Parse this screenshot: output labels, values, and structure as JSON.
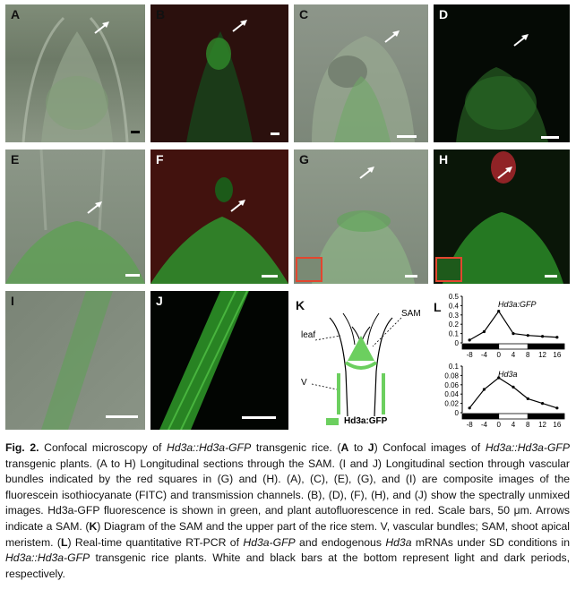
{
  "panels": {
    "A": "A",
    "B": "B",
    "C": "C",
    "D": "D",
    "E": "E",
    "F": "F",
    "G": "G",
    "H": "H",
    "I": "I",
    "J": "J",
    "K": "K",
    "L": "L"
  },
  "diagram_k": {
    "label_leaf": "leaf",
    "label_sam": "SAM",
    "label_v": "V",
    "legend": "Hd3a:GFP"
  },
  "colors": {
    "fluorescence_green": "#3fbf3f",
    "autofluorescence_red": "#c0292b",
    "inset_border": "#e3462f"
  },
  "chart_data": [
    {
      "type": "line",
      "title": "Hd3a:GFP",
      "x": [
        -8,
        -4,
        0,
        4,
        8,
        12,
        16
      ],
      "xticks": [
        "-8",
        "-4",
        "0",
        "4",
        "8",
        "12",
        "16"
      ],
      "y": [
        0.03,
        0.12,
        0.34,
        0.1,
        0.08,
        0.07,
        0.06
      ],
      "yticks": [
        "0",
        "0.1",
        "0.2",
        "0.3",
        "0.4",
        "0.5"
      ],
      "ylim": [
        0,
        0.5
      ],
      "light_dark_bar": [
        {
          "from": -10,
          "to": 0,
          "phase": "dark"
        },
        {
          "from": 0,
          "to": 8,
          "phase": "light"
        },
        {
          "from": 8,
          "to": 18,
          "phase": "dark"
        }
      ]
    },
    {
      "type": "line",
      "title": "Hd3a",
      "x": [
        -8,
        -4,
        0,
        4,
        8,
        12,
        16
      ],
      "xticks": [
        "-8",
        "-4",
        "0",
        "4",
        "8",
        "12",
        "16"
      ],
      "y": [
        0.01,
        0.05,
        0.075,
        0.055,
        0.03,
        0.02,
        0.01
      ],
      "yticks": [
        "0",
        "0.02",
        "0.04",
        "0.06",
        "0.08",
        "0.1"
      ],
      "ylim": [
        0,
        0.1
      ],
      "light_dark_bar": [
        {
          "from": -10,
          "to": 0,
          "phase": "dark"
        },
        {
          "from": 0,
          "to": 8,
          "phase": "light"
        },
        {
          "from": 8,
          "to": 18,
          "phase": "dark"
        }
      ]
    }
  ],
  "caption": {
    "fig": "Fig. 2.",
    "t1": " Confocal microscopy of ",
    "g1": "Hd3a::Hd3a-GFP",
    "t2": " transgenic rice. (",
    "b1": "A",
    "t3": " to ",
    "b2": "J",
    "t4": ") Confocal images of ",
    "g2": "Hd3a::Hd3a-GFP",
    "t5": " transgenic plants. (A to H) Longitudinal sections through the SAM. (I and J) Longitudinal section through vascular bundles indicated by the red squares in (G) and (H). (A), (C), (E), (G), and (I) are composite images of the fluorescein isothiocyanate (FITC) and transmission channels. (B), (D), (F), (H), and (J) show the spectrally unmixed images. Hd3a-GFP fluorescence is shown in green, and plant autofluorescence in red. Scale bars, 50 μm. Arrows indicate a SAM. (",
    "b3": "K",
    "t6": ") Diagram of the SAM and the upper part of the rice stem. V, vascular bundles; SAM, shoot apical meristem. (",
    "b4": "L",
    "t7": ") Real-time quantitative RT-PCR of ",
    "g3": "Hd3a-GFP",
    "t8": " and endogenous ",
    "g4": "Hd3a",
    "t9": " mRNAs under SD conditions in ",
    "g5": "Hd3a::Hd3a-GFP",
    "t10": " transgenic rice plants. White and black bars at the bottom represent light and dark periods, respectively."
  }
}
